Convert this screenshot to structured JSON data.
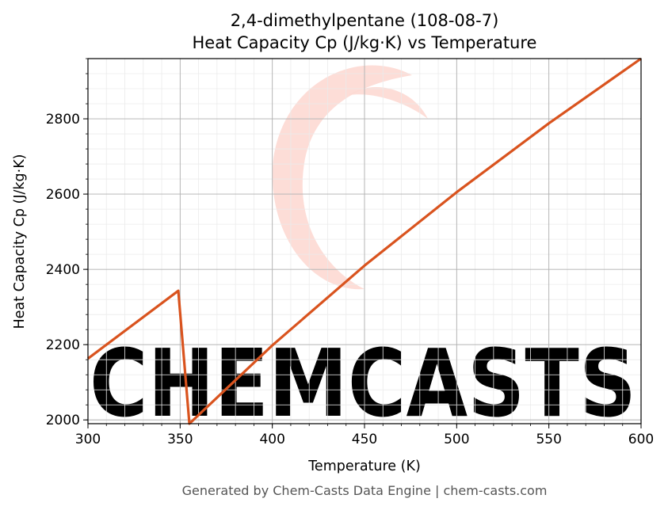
{
  "chart_data": {
    "type": "line",
    "title": "2,4-dimethylpentane (108-08-7)",
    "subtitle": "Heat Capacity Cp (J/kg·K) vs Temperature",
    "xlabel": "Temperature (K)",
    "ylabel": "Heat Capacity Cp (J/kg·K)",
    "xlim": [
      300,
      600
    ],
    "ylim": [
      1990,
      2960
    ],
    "x_ticks": [
      300,
      350,
      400,
      450,
      500,
      550,
      600
    ],
    "y_ticks": [
      2000,
      2200,
      2400,
      2600,
      2800
    ],
    "grid": true,
    "minor_grid": true,
    "series": [
      {
        "color": "#d9531e",
        "x": [
          300,
          349,
          355,
          400,
          450,
          500,
          550,
          600
        ],
        "y": [
          2163,
          2343,
          1990,
          2198,
          2410,
          2605,
          2788,
          2960
        ]
      }
    ]
  },
  "watermark": {
    "text": "CHEMCASTS",
    "color": "#fdd9d3"
  },
  "footer": "Generated by Chem-Casts Data Engine | chem-casts.com"
}
